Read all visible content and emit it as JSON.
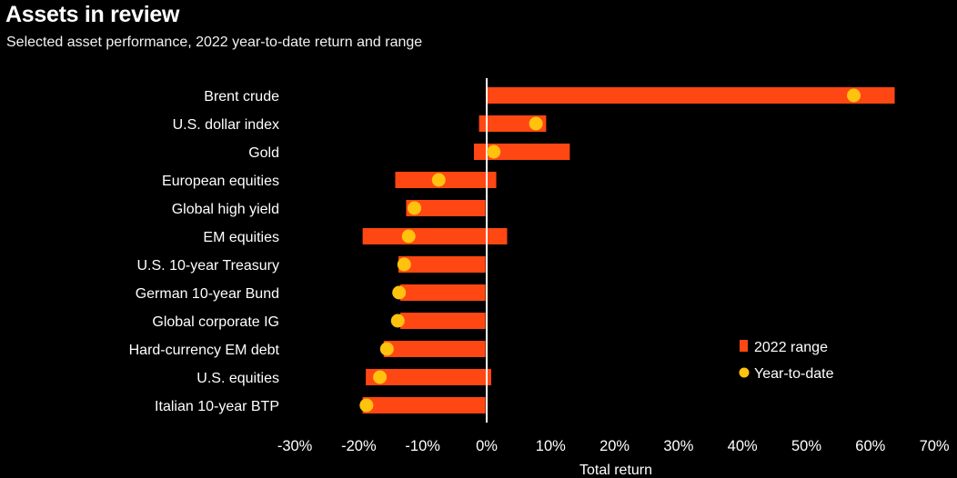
{
  "title": "Assets in review",
  "subtitle": "Selected asset performance, 2022 year-to-date return and range",
  "colors": {
    "range": "#ff4713",
    "ytd": "#ffc20e",
    "background": "#000000",
    "zero_line": "#ffffff"
  },
  "chart_data": {
    "type": "bar",
    "orientation": "horizontal",
    "xlabel": "Total return",
    "xlim": [
      -30,
      70
    ],
    "xticks": [
      -30,
      -20,
      -10,
      0,
      10,
      20,
      30,
      40,
      50,
      60,
      70
    ],
    "tick_labels": [
      "-30%",
      "-20%",
      "-10%",
      "0%",
      "10%",
      "20%",
      "30%",
      "40%",
      "50%",
      "60%",
      "70%"
    ],
    "legend": {
      "placement": "bottom-right",
      "range_label": "2022 range",
      "ytd_label": "Year-to-date"
    },
    "categories": [
      "Brent crude",
      "U.S. dollar index",
      "Gold",
      "European equities",
      "Global high yield",
      "EM equities",
      "U.S. 10-year Treasury",
      "German 10-year Bund",
      "Global corporate IG",
      "Hard-currency EM debt",
      "U.S. equities",
      "Italian 10-year BTP"
    ],
    "series": [
      {
        "name": "2022 range",
        "kind": "range",
        "low": [
          0,
          -1.2,
          -2.0,
          -14.3,
          -12.6,
          -19.4,
          -13.8,
          -13.5,
          -13.5,
          -16.1,
          -18.9,
          -19.4
        ],
        "high": [
          63.8,
          9.3,
          13.0,
          1.5,
          -0.2,
          3.2,
          -0.2,
          -0.2,
          -0.2,
          -0.2,
          0.7,
          -0.2
        ]
      },
      {
        "name": "Year-to-date",
        "kind": "point",
        "values": [
          57.4,
          7.7,
          1.1,
          -7.5,
          -11.3,
          -12.2,
          -12.9,
          -13.7,
          -13.9,
          -15.6,
          -16.7,
          -18.8
        ]
      }
    ]
  }
}
